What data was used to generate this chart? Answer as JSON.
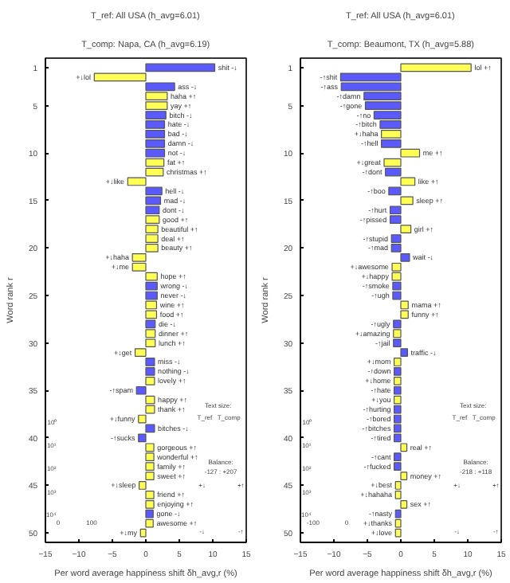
{
  "chart_data": [
    {
      "type": "bar",
      "orientation": "horizontal",
      "title": "T_ref: All USA (h_avg=6.01)",
      "subtitle": "T_comp: Napa, CA (h_avg=6.19)",
      "xlabel": "Per word average happiness shift δh_avg,r (%)",
      "ylabel": "Word rank r",
      "xlim": [
        -15,
        15
      ],
      "xticks": [
        -15,
        -10,
        -5,
        0,
        5,
        10,
        15
      ],
      "ylim": [
        51,
        0
      ],
      "yticks": [
        1,
        5,
        10,
        15,
        20,
        25,
        30,
        35,
        40,
        45,
        50
      ],
      "x": [
        1,
        2,
        3,
        4,
        5,
        6,
        7,
        8,
        9,
        10,
        11,
        12,
        13,
        14,
        15,
        16,
        17,
        18,
        19,
        20,
        21,
        22,
        23,
        24,
        25,
        26,
        27,
        28,
        29,
        30,
        31,
        32,
        33,
        34,
        35,
        36,
        37,
        38,
        39,
        40,
        41,
        42,
        43,
        44,
        45,
        46,
        47,
        48,
        49,
        50
      ],
      "values": [
        10.3,
        -7.7,
        4.3,
        3.2,
        3.2,
        3.0,
        2.8,
        2.8,
        2.8,
        2.8,
        2.7,
        2.6,
        -2.7,
        2.4,
        2.2,
        2.0,
        2.0,
        1.8,
        1.8,
        1.8,
        -2.0,
        -2.0,
        1.7,
        1.7,
        1.7,
        1.6,
        1.6,
        1.4,
        1.4,
        1.4,
        -1.6,
        1.3,
        1.3,
        1.3,
        -1.4,
        1.3,
        1.3,
        -1.1,
        1.3,
        -1.1,
        1.2,
        1.2,
        1.2,
        1.2,
        -1.0,
        1.2,
        1.2,
        1.1,
        1.1,
        -0.8
      ],
      "colors": [
        "#5a5aff",
        "#ffff55",
        "#5a5aff",
        "#ffff55",
        "#ffff55",
        "#5a5aff",
        "#5a5aff",
        "#5a5aff",
        "#5a5aff",
        "#5a5aff",
        "#ffff55",
        "#ffff55",
        "#ffff55",
        "#5a5aff",
        "#5a5aff",
        "#5a5aff",
        "#ffff55",
        "#ffff55",
        "#ffff55",
        "#ffff55",
        "#ffff55",
        "#ffff55",
        "#ffff55",
        "#5a5aff",
        "#5a5aff",
        "#ffff55",
        "#ffff55",
        "#5a5aff",
        "#ffff55",
        "#ffff55",
        "#ffff55",
        "#5a5aff",
        "#5a5aff",
        "#ffff55",
        "#5a5aff",
        "#ffff55",
        "#ffff55",
        "#ffff55",
        "#5a5aff",
        "#5a5aff",
        "#ffff55",
        "#ffff55",
        "#ffff55",
        "#ffff55",
        "#ffff55",
        "#ffff55",
        "#ffff55",
        "#5a5aff",
        "#ffff55",
        "#ffff55"
      ],
      "value_labels": [
        "shit -↓",
        "+↓lol",
        "ass -↓",
        "haha +↑",
        "yay +↑",
        "bitch -↓",
        "hate -↓",
        "bad -↓",
        "damn -↓",
        "not -↓",
        "fat +↑",
        "christmas +↑",
        "+↓like",
        "hell -↓",
        "mad -↓",
        "dont -↓",
        "good +↑",
        "beautiful +↑",
        "deal +↑",
        "beauty +↑",
        "+↓haha",
        "+↓me",
        "hope +↑",
        "wrong -↓",
        "never -↓",
        "wine +↑",
        "food +↑",
        "die -↓",
        "dinner +↑",
        "lunch +↑",
        "+↓get",
        "miss -↓",
        "nothing -↓",
        "lovely +↑",
        "-↑spam",
        "happy +↑",
        "thank +↑",
        "+↓funny",
        "bitches -↓",
        "-↑sucks",
        "gorgeous +↑",
        "wonderful +↑",
        "family +↑",
        "sweet +↑",
        "+↓sleep",
        "friend +↑",
        "enjoying +↑",
        "gone -↓",
        "awesome +↑",
        "+↓my"
      ],
      "annotations": [
        "Text size:",
        "T_ref",
        "T_comp",
        "Balance:",
        "-127 : +207",
        "+↓",
        "+↑",
        "-↓",
        "-↑",
        "10⁰",
        "10¹",
        "10²",
        "10³",
        "10⁴",
        "0",
        "100"
      ]
    },
    {
      "type": "bar",
      "orientation": "horizontal",
      "title": "T_ref: All USA (h_avg=6.01)",
      "subtitle": "T_comp: Beaumont, TX (h_avg=5.88)",
      "xlabel": "Per word average happiness shift δh_avg,r (%)",
      "ylabel": "Word rank r",
      "xlim": [
        -15,
        15
      ],
      "xticks": [
        -15,
        -10,
        -5,
        0,
        5,
        10,
        15
      ],
      "ylim": [
        51,
        0
      ],
      "yticks": [
        1,
        5,
        10,
        15,
        20,
        25,
        30,
        35,
        40,
        45,
        50
      ],
      "x": [
        1,
        2,
        3,
        4,
        5,
        6,
        7,
        8,
        9,
        10,
        11,
        12,
        13,
        14,
        15,
        16,
        17,
        18,
        19,
        20,
        21,
        22,
        23,
        24,
        25,
        26,
        27,
        28,
        29,
        30,
        31,
        32,
        33,
        34,
        35,
        36,
        37,
        38,
        39,
        40,
        41,
        42,
        43,
        44,
        45,
        46,
        47,
        48,
        49,
        50
      ],
      "values": [
        10.5,
        -9.0,
        -8.9,
        -5.5,
        -5.3,
        -4.0,
        -3.1,
        -2.9,
        -2.9,
        2.8,
        -2.5,
        -2.3,
        2.1,
        -1.8,
        1.8,
        -1.6,
        -1.6,
        1.5,
        -1.4,
        -1.4,
        1.3,
        -1.3,
        -1.3,
        -1.2,
        -1.2,
        1.1,
        1.1,
        -1.1,
        -1.1,
        -1.1,
        1.0,
        -1.0,
        -1.0,
        -1.0,
        -1.0,
        -1.0,
        -1.0,
        -1.0,
        -1.0,
        -1.0,
        0.9,
        -1.0,
        -1.0,
        0.9,
        -0.8,
        -0.8,
        0.9,
        -0.8,
        -0.8,
        -0.8
      ],
      "colors": [
        "#ffff55",
        "#5a5aff",
        "#5a5aff",
        "#5a5aff",
        "#5a5aff",
        "#5a5aff",
        "#5a5aff",
        "#ffff55",
        "#5a5aff",
        "#ffff55",
        "#ffff55",
        "#5a5aff",
        "#ffff55",
        "#5a5aff",
        "#ffff55",
        "#5a5aff",
        "#5a5aff",
        "#ffff55",
        "#5a5aff",
        "#5a5aff",
        "#5a5aff",
        "#ffff55",
        "#ffff55",
        "#5a5aff",
        "#5a5aff",
        "#ffff55",
        "#ffff55",
        "#5a5aff",
        "#ffff55",
        "#5a5aff",
        "#5a5aff",
        "#ffff55",
        "#5a5aff",
        "#ffff55",
        "#5a5aff",
        "#ffff55",
        "#5a5aff",
        "#5a5aff",
        "#5a5aff",
        "#5a5aff",
        "#ffff55",
        "#5a5aff",
        "#5a5aff",
        "#ffff55",
        "#ffff55",
        "#ffff55",
        "#ffff55",
        "#5a5aff",
        "#ffff55",
        "#ffff55"
      ],
      "value_labels": [
        "lol +↑",
        "-↑shit",
        "-↑ass",
        "-↑damn",
        "-↑gone",
        "-↑no",
        "-↑bitch",
        "+↓haha",
        "-↑hell",
        "me +↑",
        "+↓great",
        "-↑dont",
        "like +↑",
        "-↑boo",
        "sleep +↑",
        "-↑hurt",
        "-↑pissed",
        "girl +↑",
        "-↑stupid",
        "-↑mad",
        "wait -↓",
        "+↓awesome",
        "+↓happy",
        "-↑smoke",
        "-↑ugh",
        "mama +↑",
        "funny +↑",
        "-↑ugly",
        "+↓amazing",
        "-↑jail",
        "traffic -↓",
        "+↓mom",
        "-↑down",
        "+↓home",
        "-↑hate",
        "+↓you",
        "-↑hurting",
        "-↑bored",
        "-↑bitches",
        "-↑tired",
        "real +↑",
        "-↑cant",
        "-↑fucked",
        "money +↑",
        "+↓best",
        "+↓hahaha",
        "sex +↑",
        "-↑nasty",
        "+↓thanks",
        "+↓love"
      ],
      "annotations": [
        "Text size:",
        "T_ref",
        "T_comp",
        "Balance:",
        "-218 : +118",
        "+↓",
        "+↑",
        "-↓",
        "-↑",
        "10⁰",
        "10¹",
        "10²",
        "10³",
        "10⁴",
        "-100",
        "0"
      ]
    }
  ]
}
